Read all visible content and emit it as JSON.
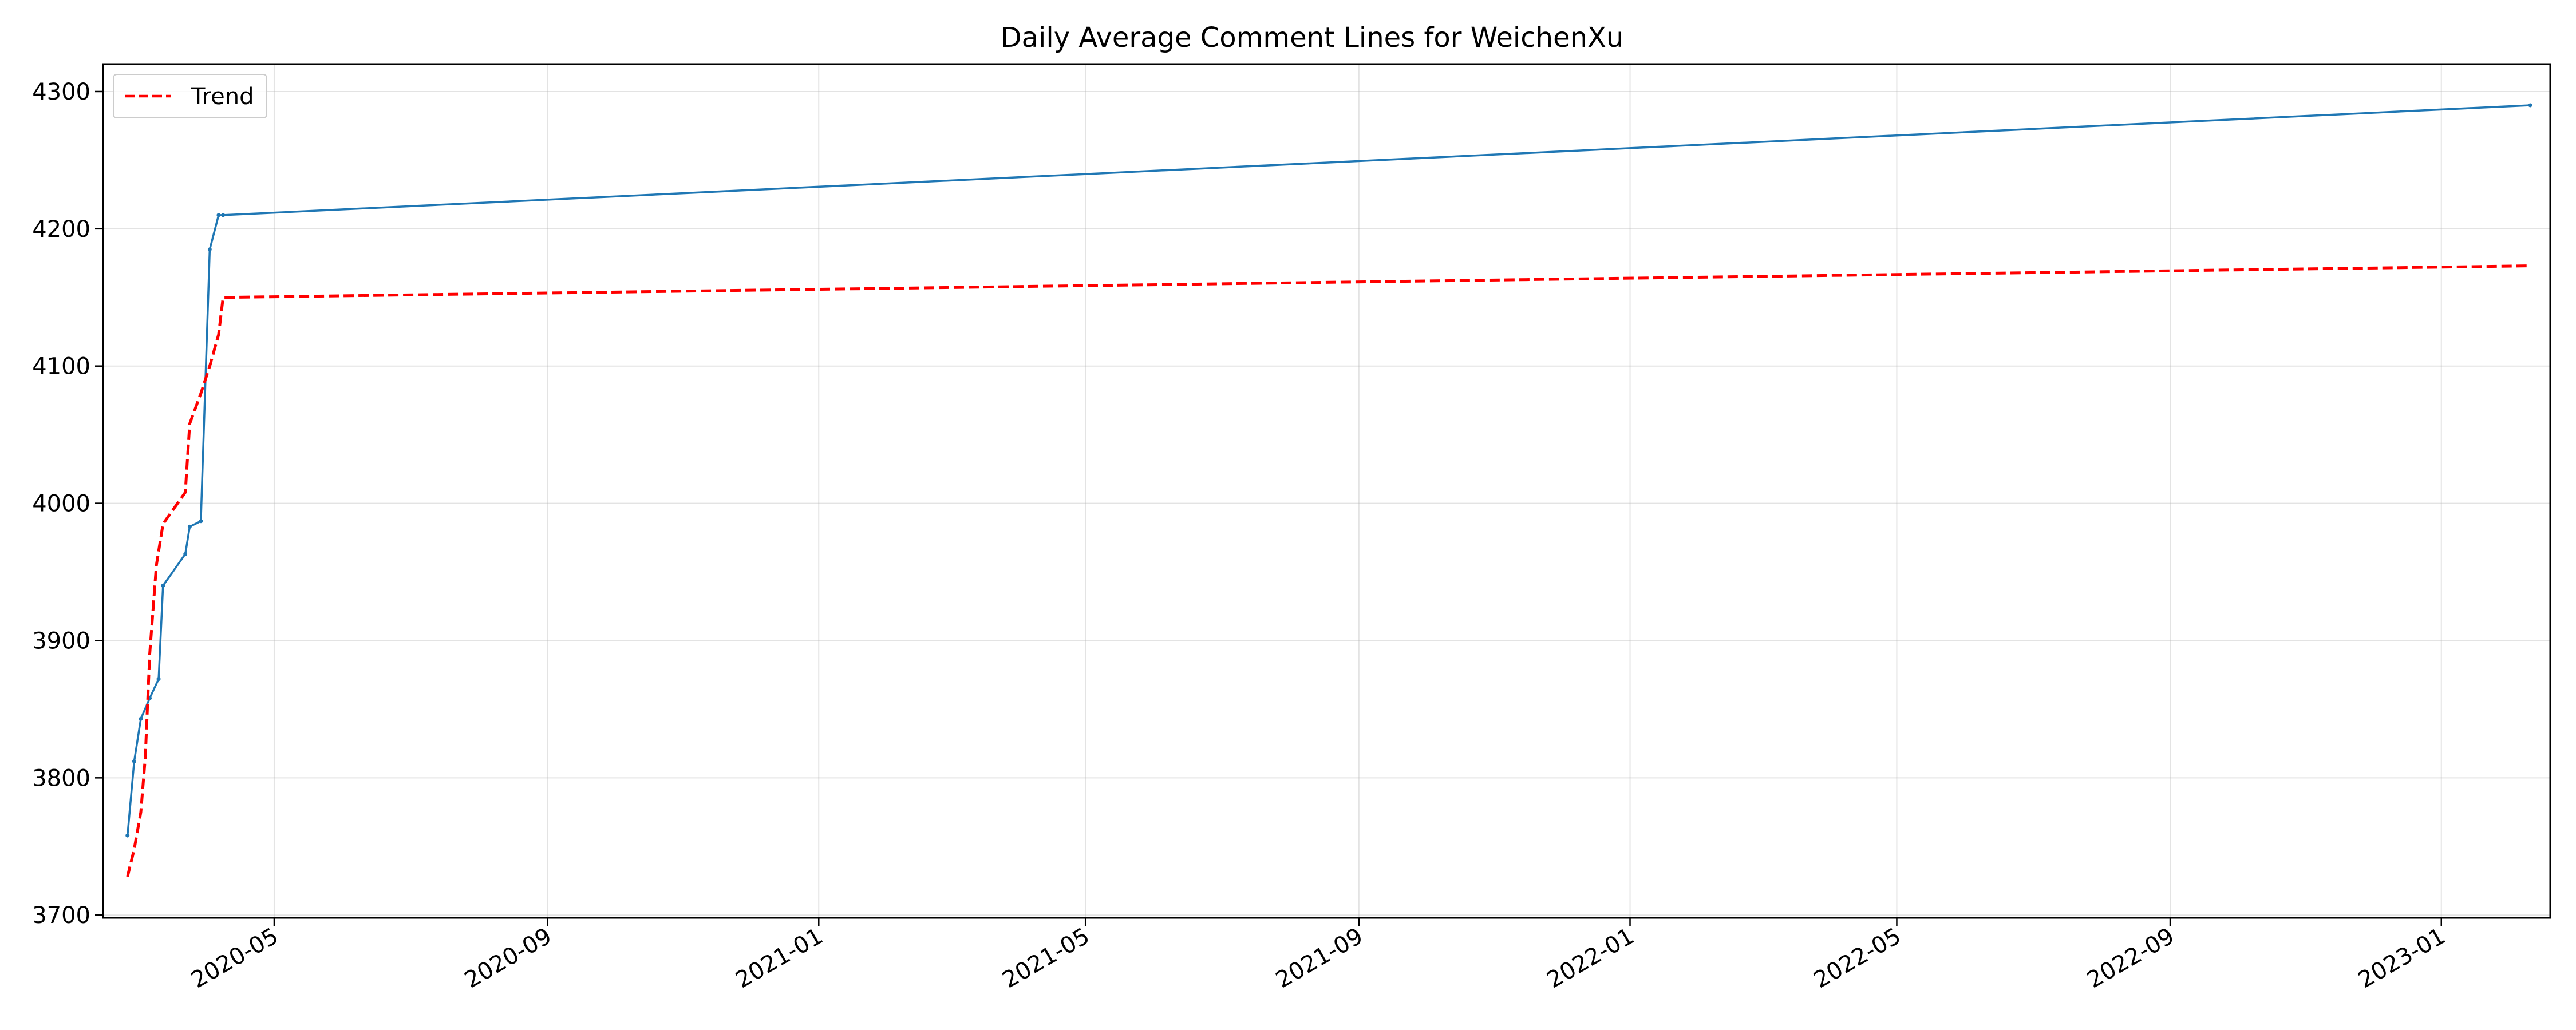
{
  "chart_data": {
    "type": "line",
    "title": "Daily Average Comment Lines for WeichenXu",
    "xlabel": "",
    "ylabel": "",
    "x_axis": {
      "type": "date",
      "range": [
        "2020-02-14",
        "2023-02-19"
      ],
      "ticks": [
        {
          "date": "2020-05-01",
          "label": "2020-05"
        },
        {
          "date": "2020-09-01",
          "label": "2020-09"
        },
        {
          "date": "2021-01-01",
          "label": "2021-01"
        },
        {
          "date": "2021-05-01",
          "label": "2021-05"
        },
        {
          "date": "2021-09-01",
          "label": "2021-09"
        },
        {
          "date": "2022-01-01",
          "label": "2022-01"
        },
        {
          "date": "2022-05-01",
          "label": "2022-05"
        },
        {
          "date": "2022-09-01",
          "label": "2022-09"
        },
        {
          "date": "2023-01-01",
          "label": "2023-01"
        }
      ]
    },
    "y_axis": {
      "range": [
        3698,
        4320
      ],
      "ticks": [
        3700,
        3800,
        3900,
        4000,
        4100,
        4200,
        4300
      ]
    },
    "grid": true,
    "legend": {
      "placement": "top-left",
      "entries": [
        "Trend"
      ]
    },
    "series": [
      {
        "color": "#1f77b4",
        "style": "solid",
        "markers": true,
        "points": [
          {
            "x": "2020-02-25",
            "y": 3758
          },
          {
            "x": "2020-02-28",
            "y": 3812
          },
          {
            "x": "2020-03-02",
            "y": 3843
          },
          {
            "x": "2020-03-06",
            "y": 3858
          },
          {
            "x": "2020-03-10",
            "y": 3872
          },
          {
            "x": "2020-03-12",
            "y": 3940
          },
          {
            "x": "2020-03-22",
            "y": 3963
          },
          {
            "x": "2020-03-24",
            "y": 3983
          },
          {
            "x": "2020-03-29",
            "y": 3987
          },
          {
            "x": "2020-04-02",
            "y": 4185
          },
          {
            "x": "2020-04-06",
            "y": 4210
          },
          {
            "x": "2020-04-08",
            "y": 4210
          },
          {
            "x": "2023-02-10",
            "y": 4290
          }
        ]
      },
      {
        "name": "Trend",
        "color": "#ff0000",
        "style": "dashed",
        "markers": false,
        "points": [
          {
            "x": "2020-02-25",
            "y": 3728
          },
          {
            "x": "2020-02-28",
            "y": 3748
          },
          {
            "x": "2020-03-02",
            "y": 3775
          },
          {
            "x": "2020-03-04",
            "y": 3815
          },
          {
            "x": "2020-03-06",
            "y": 3890
          },
          {
            "x": "2020-03-09",
            "y": 3955
          },
          {
            "x": "2020-03-12",
            "y": 3985
          },
          {
            "x": "2020-03-22",
            "y": 4008
          },
          {
            "x": "2020-03-24",
            "y": 4058
          },
          {
            "x": "2020-03-29",
            "y": 4080
          },
          {
            "x": "2020-04-02",
            "y": 4100
          },
          {
            "x": "2020-04-06",
            "y": 4123
          },
          {
            "x": "2020-04-08",
            "y": 4150
          },
          {
            "x": "2023-02-10",
            "y": 4173
          }
        ]
      }
    ]
  }
}
